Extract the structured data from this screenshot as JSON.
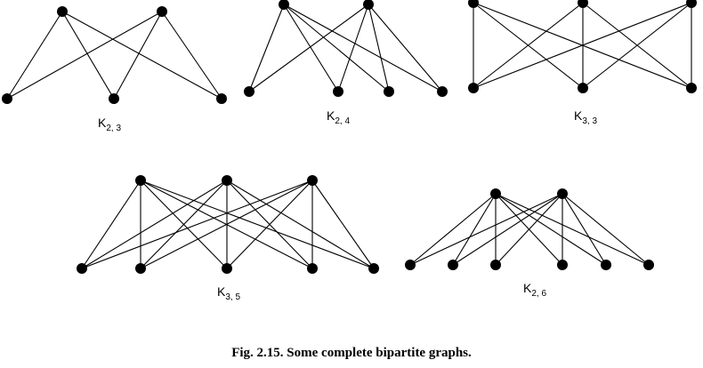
{
  "caption": "Fig. 2.15. Some complete bipartite graphs.",
  "graphs": [
    {
      "letter": "K",
      "subscript": "2, 3",
      "m": 2,
      "n": 3
    },
    {
      "letter": "K",
      "subscript": "2, 4",
      "m": 2,
      "n": 4
    },
    {
      "letter": "K",
      "subscript": "3, 3",
      "m": 3,
      "n": 3
    },
    {
      "letter": "K",
      "subscript": "3, 5",
      "m": 3,
      "n": 5
    },
    {
      "letter": "K",
      "subscript": "2, 6",
      "m": 2,
      "n": 6
    }
  ]
}
